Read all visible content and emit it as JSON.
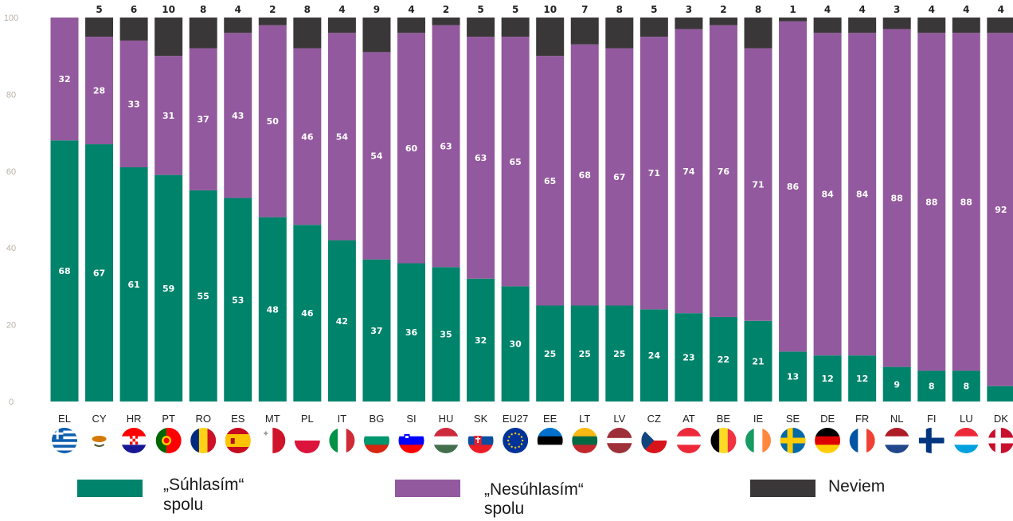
{
  "chart_data": {
    "type": "bar",
    "stacked": true,
    "orientation": "vertical",
    "ylim": [
      0,
      100
    ],
    "yticks": [
      0,
      20,
      40,
      60,
      80,
      100
    ],
    "grid": false,
    "legend_position": "bottom",
    "categories": [
      "EL",
      "CY",
      "HR",
      "PT",
      "RO",
      "ES",
      "MT",
      "PL",
      "IT",
      "BG",
      "SI",
      "HU",
      "SK",
      "EU27",
      "EE",
      "LT",
      "LV",
      "CZ",
      "AT",
      "BE",
      "IE",
      "SE",
      "DE",
      "FR",
      "NL",
      "FI",
      "LU",
      "DK"
    ],
    "series": [
      {
        "name": "„Súhlasím“ spolu",
        "name_line1": "„Súhlasím“",
        "name_line2": "spolu",
        "color": "#00836b",
        "values": [
          68,
          67,
          61,
          59,
          55,
          53,
          48,
          46,
          42,
          37,
          36,
          35,
          32,
          30,
          25,
          25,
          25,
          24,
          23,
          22,
          21,
          13,
          12,
          12,
          9,
          8,
          8,
          4
        ],
        "labels": [
          "68",
          "67",
          "61",
          "59",
          "55",
          "53",
          "48",
          "46",
          "42",
          "37",
          "36",
          "35",
          "32",
          "30",
          "25",
          "25",
          "25",
          "24",
          "23",
          "22",
          "21",
          "13",
          "12",
          "12",
          "9",
          "8",
          "8",
          ""
        ]
      },
      {
        "name": "„Nesúhlasím“ spolu",
        "name_line1": "„Nesúhlasím“",
        "name_line2": "spolu",
        "color": "#93599e",
        "values": [
          32,
          28,
          33,
          31,
          37,
          43,
          50,
          46,
          54,
          54,
          60,
          63,
          63,
          65,
          65,
          68,
          67,
          71,
          74,
          76,
          71,
          86,
          84,
          84,
          88,
          88,
          88,
          92
        ],
        "labels": [
          "32",
          "28",
          "33",
          "31",
          "37",
          "43",
          "50",
          "46",
          "54",
          "54",
          "60",
          "63",
          "63",
          "65",
          "65",
          "68",
          "67",
          "71",
          "74",
          "76",
          "71",
          "86",
          "84",
          "84",
          "88",
          "88",
          "88",
          "92"
        ]
      },
      {
        "name": "Neviem",
        "color": "#3a3738",
        "values": [
          0,
          5,
          6,
          10,
          8,
          4,
          2,
          8,
          4,
          9,
          4,
          2,
          5,
          5,
          10,
          7,
          8,
          5,
          3,
          2,
          8,
          1,
          4,
          4,
          3,
          4,
          4,
          4
        ],
        "labels": [
          "",
          "5",
          "6",
          "10",
          "8",
          "4",
          "2",
          "8",
          "4",
          "9",
          "4",
          "2",
          "5",
          "5",
          "10",
          "7",
          "8",
          "5",
          "3",
          "2",
          "8",
          "1",
          "4",
          "4",
          "3",
          "4",
          "4",
          "4"
        ]
      }
    ]
  },
  "flags": [
    {
      "code": "EL",
      "icon": "greece-flag-icon"
    },
    {
      "code": "CY",
      "icon": "cyprus-flag-icon"
    },
    {
      "code": "HR",
      "icon": "croatia-flag-icon"
    },
    {
      "code": "PT",
      "icon": "portugal-flag-icon"
    },
    {
      "code": "RO",
      "icon": "romania-flag-icon"
    },
    {
      "code": "ES",
      "icon": "spain-flag-icon"
    },
    {
      "code": "MT",
      "icon": "malta-flag-icon"
    },
    {
      "code": "PL",
      "icon": "poland-flag-icon"
    },
    {
      "code": "IT",
      "icon": "italy-flag-icon"
    },
    {
      "code": "BG",
      "icon": "bulgaria-flag-icon"
    },
    {
      "code": "SI",
      "icon": "slovenia-flag-icon"
    },
    {
      "code": "HU",
      "icon": "hungary-flag-icon"
    },
    {
      "code": "SK",
      "icon": "slovakia-flag-icon"
    },
    {
      "code": "EU27",
      "icon": "eu-flag-icon"
    },
    {
      "code": "EE",
      "icon": "estonia-flag-icon"
    },
    {
      "code": "LT",
      "icon": "lithuania-flag-icon"
    },
    {
      "code": "LV",
      "icon": "latvia-flag-icon"
    },
    {
      "code": "CZ",
      "icon": "czechia-flag-icon"
    },
    {
      "code": "AT",
      "icon": "austria-flag-icon"
    },
    {
      "code": "BE",
      "icon": "belgium-flag-icon"
    },
    {
      "code": "IE",
      "icon": "ireland-flag-icon"
    },
    {
      "code": "SE",
      "icon": "sweden-flag-icon"
    },
    {
      "code": "DE",
      "icon": "germany-flag-icon"
    },
    {
      "code": "FR",
      "icon": "france-flag-icon"
    },
    {
      "code": "NL",
      "icon": "netherlands-flag-icon"
    },
    {
      "code": "FI",
      "icon": "finland-flag-icon"
    },
    {
      "code": "LU",
      "icon": "luxembourg-flag-icon"
    },
    {
      "code": "DK",
      "icon": "denmark-flag-icon"
    }
  ]
}
